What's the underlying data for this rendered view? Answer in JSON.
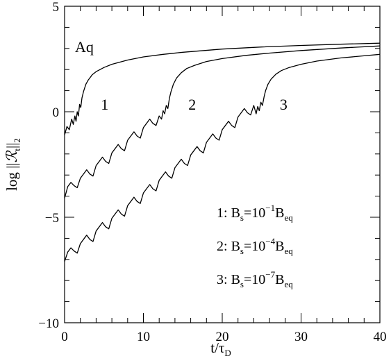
{
  "chart_data": {
    "type": "line",
    "panel_label": "Aq",
    "xlabel": "t/τ",
    "xlabel_sub": "D",
    "ylabel_prefix": "log ||",
    "ylabel_symbol": "ℛ",
    "ylabel_symbol_sub": "t",
    "ylabel_suffix": "||",
    "ylabel_suffix_sub": "2",
    "xlim": [
      0,
      40
    ],
    "ylim": [
      -10,
      5
    ],
    "x_ticks": [
      0,
      10,
      20,
      30,
      40
    ],
    "y_ticks": [
      -10,
      -5,
      0,
      5
    ],
    "x_tick_labels": [
      "0",
      "10",
      "20",
      "30",
      "40"
    ],
    "y_tick_labels": [
      "−10",
      "−5",
      "0",
      "5"
    ],
    "grid": false,
    "series": [
      {
        "name": "1",
        "label_at": [
          4.6,
          0.1
        ],
        "x": [
          0,
          0.3,
          0.6,
          0.9,
          1.1,
          1.3,
          1.45,
          1.6,
          1.75,
          1.9,
          2.05,
          2.2,
          2.4,
          2.7,
          3.0,
          3.5,
          4.0,
          5.0,
          6.0,
          8.0,
          10.0,
          12.5,
          15.0,
          20.0,
          25.0,
          30.0,
          35.0,
          40.0
        ],
        "y": [
          -1.1,
          -0.7,
          -0.85,
          -0.35,
          -0.6,
          -0.2,
          -0.45,
          0.0,
          -0.2,
          0.35,
          0.2,
          0.65,
          0.95,
          1.3,
          1.5,
          1.75,
          1.9,
          2.1,
          2.25,
          2.45,
          2.6,
          2.72,
          2.82,
          2.97,
          3.07,
          3.14,
          3.2,
          3.25
        ]
      },
      {
        "name": "2",
        "label_at": [
          15.7,
          0.1
        ],
        "x": [
          0,
          0.4,
          0.8,
          1.2,
          1.6,
          2.0,
          2.8,
          3.2,
          3.6,
          4.0,
          4.8,
          5.2,
          5.6,
          6.0,
          6.8,
          7.2,
          7.6,
          8.0,
          8.8,
          9.2,
          9.6,
          10.0,
          10.8,
          11.2,
          11.6,
          12.0,
          12.3,
          12.5,
          12.7,
          12.9,
          13.1,
          13.3,
          13.5,
          13.8,
          14.2,
          14.8,
          15.5,
          16.5,
          18.0,
          20.0,
          23.0,
          26.0,
          30.0,
          35.0,
          40.0
        ],
        "y": [
          -4.1,
          -3.55,
          -3.35,
          -3.5,
          -3.6,
          -3.15,
          -2.75,
          -2.95,
          -3.05,
          -2.55,
          -2.15,
          -2.35,
          -2.45,
          -1.95,
          -1.55,
          -1.75,
          -1.85,
          -1.35,
          -0.95,
          -1.15,
          -1.25,
          -0.75,
          -0.35,
          -0.55,
          -0.65,
          -0.2,
          -0.35,
          0.05,
          -0.1,
          0.3,
          0.15,
          0.65,
          0.95,
          1.3,
          1.6,
          1.85,
          2.05,
          2.2,
          2.38,
          2.52,
          2.67,
          2.78,
          2.9,
          3.02,
          3.12
        ]
      },
      {
        "name": "3",
        "label_at": [
          27.3,
          0.1
        ],
        "x": [
          0,
          0.4,
          0.8,
          1.2,
          1.6,
          2.0,
          2.8,
          3.2,
          3.6,
          4.0,
          4.8,
          5.2,
          5.6,
          6.0,
          6.8,
          7.2,
          7.6,
          8.0,
          8.8,
          9.2,
          9.6,
          10.0,
          10.8,
          11.2,
          11.6,
          12.0,
          12.8,
          13.2,
          13.6,
          14.0,
          14.8,
          15.2,
          15.6,
          16.0,
          16.8,
          17.2,
          17.6,
          18.0,
          18.8,
          19.2,
          19.6,
          20.0,
          20.8,
          21.2,
          21.6,
          22.0,
          22.8,
          23.2,
          23.6,
          24.0,
          24.3,
          24.5,
          24.7,
          24.9,
          25.1,
          25.3,
          25.5,
          25.8,
          26.2,
          26.8,
          27.5,
          28.5,
          30.0,
          32.0,
          35.0,
          38.0,
          40.0
        ],
        "y": [
          -7.1,
          -6.65,
          -6.45,
          -6.6,
          -6.7,
          -6.25,
          -5.85,
          -6.05,
          -6.15,
          -5.65,
          -5.25,
          -5.45,
          -5.55,
          -5.05,
          -4.65,
          -4.85,
          -4.95,
          -4.45,
          -4.05,
          -4.25,
          -4.35,
          -3.85,
          -3.45,
          -3.65,
          -3.75,
          -3.25,
          -2.85,
          -3.05,
          -3.15,
          -2.65,
          -2.25,
          -2.45,
          -2.55,
          -2.05,
          -1.65,
          -1.85,
          -1.95,
          -1.45,
          -1.05,
          -1.25,
          -1.35,
          -0.85,
          -0.45,
          -0.65,
          -0.75,
          -0.25,
          0.15,
          -0.05,
          -0.15,
          0.3,
          -0.1,
          0.25,
          0.05,
          0.45,
          0.3,
          0.7,
          1.0,
          1.3,
          1.55,
          1.78,
          1.95,
          2.1,
          2.25,
          2.4,
          2.55,
          2.65,
          2.72
        ]
      }
    ],
    "legend": [
      {
        "num": "1:",
        "main": "B",
        "sub": "s",
        "mid": "=10",
        "exp": "−1",
        "tail": "B",
        "tail_sub": "eq"
      },
      {
        "num": "2:",
        "main": "B",
        "sub": "s",
        "mid": "=10",
        "exp": "−4",
        "tail": "B",
        "tail_sub": "eq"
      },
      {
        "num": "3:",
        "main": "B",
        "sub": "s",
        "mid": "=10",
        "exp": "−7",
        "tail": "B",
        "tail_sub": "eq"
      }
    ]
  }
}
